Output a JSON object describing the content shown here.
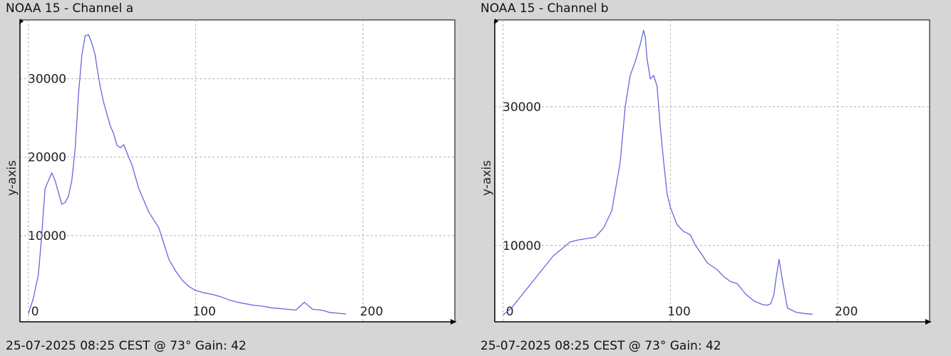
{
  "panels": [
    {
      "title": "NOAA 15 - Channel a",
      "footer": "25-07-2025 08:25 CEST @ 73° Gain: 42"
    },
    {
      "title": "NOAA 15 - Channel b",
      "footer": "25-07-2025 08:25 CEST @ 73° Gain: 42"
    }
  ],
  "colors": {
    "line": "#6666dd",
    "grid": "#b0b0b0",
    "axis": "#000000",
    "plot_bg": "#ffffff"
  },
  "chart_data": [
    {
      "type": "line",
      "title": "NOAA 15 - Channel a",
      "xlabel": "",
      "ylabel": "y-axis",
      "xlim": [
        -5,
        255
      ],
      "ylim": [
        -1000,
        37500
      ],
      "xticks": [
        0,
        100,
        200
      ],
      "yticks": [
        10000,
        20000,
        30000
      ],
      "grid": true,
      "x": [
        0,
        3,
        6,
        8,
        10,
        12,
        14,
        16,
        18,
        20,
        22,
        24,
        26,
        28,
        30,
        32,
        34,
        36,
        38,
        40,
        41,
        43,
        45,
        47,
        49,
        51,
        53,
        55,
        57,
        60,
        62,
        64,
        66,
        68,
        70,
        72,
        75,
        78,
        81,
        84,
        88,
        92,
        96,
        100,
        105,
        110,
        115,
        120,
        125,
        130,
        135,
        140,
        145,
        150,
        155,
        160,
        165,
        170,
        175,
        177,
        180,
        185,
        190
      ],
      "y": [
        0,
        2000,
        5000,
        10000,
        16000,
        17000,
        18000,
        17000,
        15500,
        14000,
        14200,
        15000,
        17000,
        21000,
        28000,
        33000,
        35500,
        35600,
        34500,
        33000,
        31500,
        29000,
        27000,
        25500,
        24000,
        23000,
        21500,
        21200,
        21600,
        20000,
        19000,
        17500,
        16000,
        15000,
        14000,
        13000,
        12000,
        11000,
        9000,
        7000,
        5500,
        4300,
        3500,
        3000,
        2700,
        2500,
        2200,
        1800,
        1500,
        1300,
        1100,
        1000,
        800,
        700,
        600,
        500,
        1500,
        600,
        500,
        400,
        200,
        100,
        0
      ]
    },
    {
      "type": "line",
      "title": "NOAA 15 - Channel b",
      "xlabel": "",
      "ylabel": "y-axis",
      "xlim": [
        -5,
        255
      ],
      "ylim": [
        -1000,
        42500
      ],
      "xticks": [
        0,
        100,
        200
      ],
      "yticks": [
        10000,
        30000
      ],
      "grid": true,
      "x": [
        0,
        5,
        10,
        15,
        20,
        25,
        30,
        35,
        40,
        45,
        50,
        55,
        60,
        65,
        70,
        73,
        76,
        79,
        82,
        84,
        85,
        86,
        88,
        90,
        92,
        94,
        96,
        98,
        100,
        104,
        108,
        110,
        112,
        115,
        118,
        122,
        128,
        132,
        136,
        140,
        145,
        150,
        155,
        158,
        160,
        162,
        163,
        165,
        167,
        170,
        175,
        180,
        185
      ],
      "y": [
        0,
        1000,
        2500,
        4000,
        5500,
        7000,
        8500,
        9500,
        10500,
        10800,
        11000,
        11200,
        12500,
        15000,
        22000,
        30000,
        34500,
        36500,
        39000,
        41000,
        40000,
        37000,
        34000,
        34500,
        33000,
        27000,
        22000,
        17500,
        15500,
        13000,
        12000,
        11800,
        11500,
        10000,
        9000,
        7500,
        6500,
        5500,
        4800,
        4500,
        3000,
        2000,
        1500,
        1400,
        1600,
        3000,
        5000,
        8000,
        5000,
        1000,
        400,
        200,
        100
      ]
    }
  ]
}
